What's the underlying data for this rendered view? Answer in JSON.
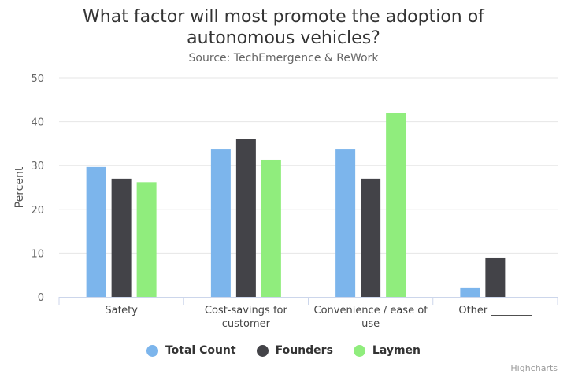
{
  "chart_data": {
    "type": "bar",
    "title": "What factor will most promote the adoption of autonomous vehicles?",
    "subtitle": "Source: TechEmergence & ReWork",
    "ylabel": "Percent",
    "xlabel": "",
    "ylim": [
      0,
      50
    ],
    "yticks": [
      0,
      10,
      20,
      30,
      40,
      50
    ],
    "grid": true,
    "legend_position": "bottom-center",
    "categories": [
      [
        "Safety"
      ],
      [
        "Cost-savings for",
        "customer"
      ],
      [
        "Convenience / ease of",
        "use"
      ],
      [
        "Other ________"
      ]
    ],
    "series": [
      {
        "name": "Total Count",
        "color": "#7cb5ec",
        "values": [
          29.7,
          33.8,
          33.8,
          2.0
        ]
      },
      {
        "name": "Founders",
        "color": "#434348",
        "values": [
          27.0,
          36.0,
          27.0,
          9.0
        ]
      },
      {
        "name": "Laymen",
        "color": "#90ed7d",
        "values": [
          26.2,
          31.3,
          42.0,
          null
        ]
      }
    ]
  },
  "credits": "Highcharts"
}
